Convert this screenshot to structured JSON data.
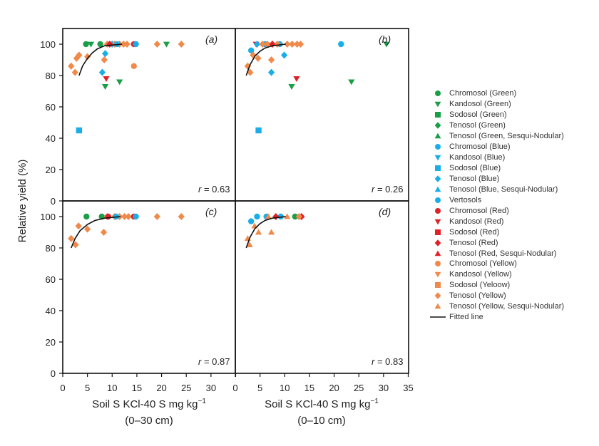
{
  "chart_data": [
    {
      "type": "scatter",
      "panel_label": "(a)",
      "r_label": "r",
      "r_value": "= 0.63",
      "xlim": [
        0,
        35
      ],
      "ylim": [
        0,
        100
      ],
      "series": [
        {
          "name": "Chromosol (Green)",
          "points": [
            [
              4.7,
              100
            ],
            [
              7.6,
              100
            ]
          ]
        },
        {
          "name": "Kandosol (Green)",
          "points": [
            [
              5.7,
              100
            ],
            [
              21,
              100
            ],
            [
              8.6,
              73
            ],
            [
              11.5,
              76
            ]
          ]
        },
        {
          "name": "Kandosol (Red)",
          "points": [
            [
              8.8,
              78
            ]
          ]
        },
        {
          "name": "Tenosol (Blue)",
          "points": [
            [
              8.6,
              94
            ],
            [
              8.0,
              82
            ],
            [
              10,
              100
            ]
          ]
        },
        {
          "name": "Sodosol (Blue)",
          "points": [
            [
              3.3,
              45
            ]
          ]
        },
        {
          "name": "Chromosol (Yellow)",
          "points": [
            [
              14.4,
              86
            ]
          ]
        },
        {
          "name": "Tenosol (Yellow)",
          "points": [
            [
              1.7,
              86
            ],
            [
              2.5,
              82
            ],
            [
              2.8,
              91
            ],
            [
              3.3,
              93
            ],
            [
              5.0,
              92
            ],
            [
              8.4,
              90
            ],
            [
              19.1,
              100
            ],
            [
              24,
              100
            ],
            [
              9,
              100
            ],
            [
              10.5,
              100
            ],
            [
              11.5,
              100
            ],
            [
              12.3,
              100
            ],
            [
              13,
              100
            ]
          ]
        },
        {
          "name": "Tenosol (Red)",
          "points": [
            [
              9.5,
              100
            ]
          ]
        },
        {
          "name": "Chromosol (Red)",
          "points": [
            [
              14.4,
              100
            ]
          ]
        },
        {
          "name": "Chromosol (Blue)",
          "points": [
            [
              14.8,
              100
            ],
            [
              11,
              100
            ]
          ]
        }
      ],
      "fitted_line": [
        [
          3.3,
          80
        ],
        [
          4,
          86
        ],
        [
          5,
          91
        ],
        [
          6,
          94.5
        ],
        [
          7,
          97
        ],
        [
          8.5,
          99
        ],
        [
          12,
          100
        ]
      ]
    },
    {
      "type": "scatter",
      "panel_label": "(b)",
      "r_label": "r",
      "r_value": "= 0.26",
      "xlim": [
        0,
        35
      ],
      "ylim": [
        0,
        100
      ],
      "series": [
        {
          "name": "Chromosol (Blue)",
          "points": [
            [
              21.4,
              100
            ],
            [
              3.2,
              96
            ],
            [
              6,
              100
            ],
            [
              9,
              100
            ]
          ]
        },
        {
          "name": "Kandosol (Green)",
          "points": [
            [
              30.6,
              100
            ],
            [
              11.4,
              73
            ],
            [
              23.5,
              76
            ]
          ]
        },
        {
          "name": "Kandosol (Red)",
          "points": [
            [
              12.4,
              78
            ],
            [
              4.2,
              100
            ]
          ]
        },
        {
          "name": "Tenosol (Blue)",
          "points": [
            [
              9.9,
              93
            ],
            [
              7.3,
              82
            ],
            [
              4.4,
              100
            ]
          ]
        },
        {
          "name": "Sodosol (Blue)",
          "points": [
            [
              4.7,
              45
            ]
          ]
        },
        {
          "name": "Tenosol (Yellow)",
          "points": [
            [
              2.5,
              86
            ],
            [
              3.0,
              82
            ],
            [
              3.6,
              93
            ],
            [
              4.6,
              91
            ],
            [
              7.3,
              90
            ],
            [
              5.5,
              100
            ],
            [
              6.5,
              100
            ],
            [
              7.5,
              100
            ],
            [
              8.5,
              100
            ],
            [
              10.5,
              100
            ],
            [
              11.5,
              100
            ],
            [
              12.5,
              100
            ],
            [
              13.2,
              100
            ]
          ]
        },
        {
          "name": "Tenosol (Red)",
          "points": [
            [
              7.5,
              100
            ]
          ]
        }
      ],
      "fitted_line": [
        [
          2.2,
          80
        ],
        [
          3,
          87
        ],
        [
          4,
          92.5
        ],
        [
          5,
          95.5
        ],
        [
          6,
          97.5
        ],
        [
          7.5,
          99
        ],
        [
          10.2,
          100
        ]
      ]
    },
    {
      "type": "scatter",
      "panel_label": "(c)",
      "r_label": "r",
      "r_value": "= 0.87",
      "xlim": [
        0,
        35
      ],
      "ylim": [
        0,
        100
      ],
      "series": [
        {
          "name": "Chromosol (Green)",
          "points": [
            [
              4.8,
              100
            ],
            [
              7.9,
              100
            ]
          ]
        },
        {
          "name": "Tenosol (Yellow)",
          "points": [
            [
              1.7,
              86
            ],
            [
              2.6,
              82
            ],
            [
              3.2,
              94
            ],
            [
              5.0,
              92
            ],
            [
              8.3,
              90
            ],
            [
              19.1,
              100
            ],
            [
              24,
              100
            ],
            [
              9,
              100
            ],
            [
              10.5,
              100
            ],
            [
              11.5,
              100
            ],
            [
              12.5,
              100
            ],
            [
              13.3,
              100
            ]
          ]
        },
        {
          "name": "Chromosol (Red)",
          "points": [
            [
              14.4,
              100
            ],
            [
              9.2,
              100
            ]
          ]
        },
        {
          "name": "Chromosol (Blue)",
          "points": [
            [
              14.8,
              100
            ],
            [
              10.8,
              100
            ]
          ]
        }
      ],
      "fitted_line": [
        [
          1.7,
          80
        ],
        [
          2.5,
          86
        ],
        [
          3.5,
          91
        ],
        [
          5,
          95
        ],
        [
          6.5,
          97.5
        ],
        [
          8.5,
          99
        ],
        [
          11.7,
          100
        ]
      ]
    },
    {
      "type": "scatter",
      "panel_label": "(d)",
      "r_label": "r",
      "r_value": "= 0.83",
      "xlim": [
        0,
        35
      ],
      "ylim": [
        0,
        100
      ],
      "series": [
        {
          "name": "Chromosol (Blue)",
          "points": [
            [
              3.2,
              97
            ],
            [
              4.4,
              100
            ],
            [
              6.3,
              100
            ],
            [
              9.2,
              100
            ]
          ]
        },
        {
          "name": "Tenosol (Yellow, Sesqui-Nodular)",
          "points": [
            [
              2.9,
              82
            ],
            [
              2.5,
              86
            ],
            [
              3.9,
              94
            ],
            [
              4.7,
              90
            ],
            [
              7.3,
              90
            ],
            [
              10.5,
              100
            ],
            [
              6.7,
              100
            ]
          ]
        },
        {
          "name": "Tenosol (Red)",
          "points": [
            [
              8.2,
              100
            ],
            [
              13.4,
              100
            ]
          ]
        },
        {
          "name": "Chromosol (Green)",
          "points": [
            [
              12.1,
              100
            ]
          ]
        },
        {
          "name": "Tenosol (Yellow)",
          "points": [
            [
              12.9,
              100
            ]
          ]
        }
      ],
      "fitted_line": [
        [
          2.2,
          80
        ],
        [
          3,
          87
        ],
        [
          4,
          92.5
        ],
        [
          5,
          95.5
        ],
        [
          6,
          97.5
        ],
        [
          7.5,
          99
        ],
        [
          10.2,
          100
        ]
      ]
    }
  ],
  "axes": {
    "ylabel": "Relative yield (%)",
    "yticks": [
      "0",
      "20",
      "40",
      "60",
      "80",
      "100"
    ],
    "xticks": [
      "0",
      "5",
      "10",
      "15",
      "20",
      "25",
      "30",
      "35"
    ],
    "xlabel_left": {
      "main": "Soil S KCl-40 S mg kg",
      "sup": "−1",
      "depth": "(0–30 cm)"
    },
    "xlabel_right": {
      "main": "Soil S KCl-40 S mg kg",
      "sup": "−1",
      "depth": "(0–10 cm)"
    }
  },
  "colors": {
    "Green": "#1a9e48",
    "Blue": "#1aaee8",
    "Red": "#e02228",
    "Yellow": "#f08a4b",
    "line": "#111111"
  },
  "legend": [
    {
      "label": "Chromosol (Green)",
      "shape": "circle",
      "color": "Green"
    },
    {
      "label": "Kandosol (Green)",
      "shape": "tri-down",
      "color": "Green"
    },
    {
      "label": "Sodosol (Green)",
      "shape": "square",
      "color": "Green"
    },
    {
      "label": "Tenosol (Green)",
      "shape": "diamond",
      "color": "Green"
    },
    {
      "label": "Tenosol (Green, Sesqui-Nodular)",
      "shape": "tri-up",
      "color": "Green"
    },
    {
      "label": "Chromosol (Blue)",
      "shape": "circle",
      "color": "Blue"
    },
    {
      "label": "Kandosol (Blue)",
      "shape": "tri-down",
      "color": "Blue"
    },
    {
      "label": "Sodosol (Blue)",
      "shape": "square",
      "color": "Blue"
    },
    {
      "label": "Tenosol (Blue)",
      "shape": "diamond",
      "color": "Blue"
    },
    {
      "label": "Tenosol (Blue, Sesqui-Nodular)",
      "shape": "tri-up",
      "color": "Blue"
    },
    {
      "label": "Vertosols",
      "shape": "circle",
      "color": "Blue"
    },
    {
      "label": "Chromosol (Red)",
      "shape": "circle",
      "color": "Red"
    },
    {
      "label": "Kandosol (Red)",
      "shape": "tri-down",
      "color": "Red"
    },
    {
      "label": "Sodosol (Red)",
      "shape": "square",
      "color": "Red"
    },
    {
      "label": "Tenosol (Red)",
      "shape": "diamond",
      "color": "Red"
    },
    {
      "label": "Tenosol (Red, Sesqui-Nodular)",
      "shape": "tri-up",
      "color": "Red"
    },
    {
      "label": "Chromosol (Yellow)",
      "shape": "circle",
      "color": "Yellow"
    },
    {
      "label": "Kandosol (Yellow)",
      "shape": "tri-down",
      "color": "Yellow"
    },
    {
      "label": "Sodosol (Yeloow)",
      "shape": "square",
      "color": "Yellow"
    },
    {
      "label": "Tenosol (Yellow)",
      "shape": "diamond",
      "color": "Yellow"
    },
    {
      "label": "Tenosol (Yellow, Sesqui-Nodular)",
      "shape": "tri-up",
      "color": "Yellow"
    },
    {
      "label": "Fitted line",
      "shape": "line",
      "color": "line"
    }
  ]
}
